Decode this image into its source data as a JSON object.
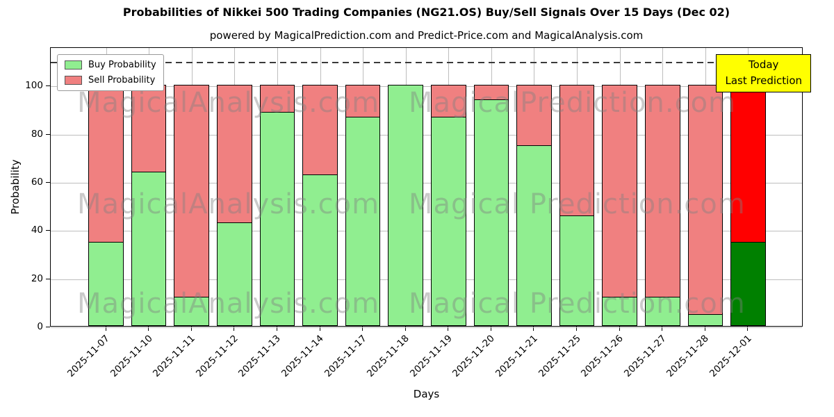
{
  "title": "Probabilities of Nikkei 500 Trading Companies (NG21.OS) Buy/Sell Signals Over 15 Days (Dec 02)",
  "subtitle": "powered by MagicalPrediction.com and Predict-Price.com and MagicalAnalysis.com",
  "legend": {
    "buy_label": "Buy Probability",
    "sell_label": "Sell Probability"
  },
  "annotation": {
    "line1": "Today",
    "line2": "Last Prediction"
  },
  "axes": {
    "xlabel": "Days",
    "ylabel": "Probability",
    "yticks": [
      0,
      20,
      40,
      60,
      80,
      100
    ]
  },
  "watermarks": [
    "MagicalAnalysis.com",
    "MagicalPrediction.com",
    "MagicalAnalysis.com",
    "Magical Prediction.com",
    "MagicalAnalysis.com",
    "Magical Prediction.com"
  ],
  "colors": {
    "buy": "#90EE90",
    "sell": "#F08080",
    "today_buy": "#008000",
    "today_sell": "#FF0000",
    "annotation_bg": "#FFFF00",
    "grid": "#BDBDBD",
    "watermark": "#808080"
  },
  "chart_data": {
    "type": "bar",
    "stacked": true,
    "title": "Probabilities of Nikkei 500 Trading Companies (NG21.OS) Buy/Sell Signals Over 15 Days (Dec 02)",
    "xlabel": "Days",
    "ylabel": "Probability",
    "categories": [
      "2025-11-07",
      "2025-11-10",
      "2025-11-11",
      "2025-11-12",
      "2025-11-13",
      "2025-11-14",
      "2025-11-17",
      "2025-11-18",
      "2025-11-19",
      "2025-11-20",
      "2025-11-21",
      "2025-11-25",
      "2025-11-26",
      "2025-11-27",
      "2025-11-28",
      "2025-12-01"
    ],
    "series": [
      {
        "name": "Buy Probability",
        "color": "#90EE90",
        "values": [
          35,
          64,
          12,
          43,
          89,
          63,
          87,
          100,
          87,
          94,
          75,
          46,
          12,
          12,
          5,
          35
        ]
      },
      {
        "name": "Sell Probability",
        "color": "#F08080",
        "values": [
          65,
          36,
          88,
          57,
          11,
          37,
          13,
          0,
          13,
          6,
          25,
          54,
          88,
          88,
          95,
          65
        ]
      }
    ],
    "last_bar": {
      "category": "2025-12-01",
      "buy_color": "#008000",
      "sell_color": "#FF0000"
    },
    "ylim": [
      0,
      116
    ],
    "yticks": [
      0,
      20,
      40,
      60,
      80,
      100
    ],
    "dashed_line_y": 110,
    "grid": true,
    "legend_position": "upper left"
  }
}
